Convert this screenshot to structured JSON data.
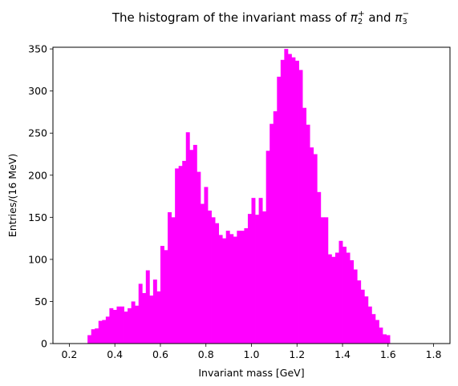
{
  "chart_data": {
    "type": "bar",
    "title_main": "The histogram of the invariant mass of ",
    "title_sym1": "π",
    "title_sub1": "2",
    "title_sup1": "+",
    "title_and": " and ",
    "title_sym2": "π",
    "title_sub2": "3",
    "title_sup2": "−",
    "xlabel": "Invariant mass [GeV]",
    "ylabel": "Entries/(16 MeV)",
    "xlim": [
      0.128,
      1.872
    ],
    "ylim": [
      0,
      352
    ],
    "xticks": [
      "0.2",
      "0.4",
      "0.6",
      "0.8",
      "1.0",
      "1.2",
      "1.4",
      "1.6",
      "1.8"
    ],
    "yticks": [
      "0",
      "50",
      "100",
      "150",
      "200",
      "250",
      "300",
      "350"
    ],
    "bar_color": "#ff00ff",
    "bin_start": 0.28,
    "bin_width": 0.016,
    "values": [
      10,
      17,
      18,
      27,
      28,
      32,
      42,
      40,
      44,
      44,
      38,
      42,
      50,
      45,
      71,
      60,
      87,
      57,
      76,
      62,
      116,
      111,
      156,
      150,
      208,
      211,
      217,
      251,
      230,
      236,
      204,
      166,
      186,
      158,
      150,
      143,
      129,
      125,
      134,
      130,
      127,
      134,
      134,
      137,
      154,
      173,
      153,
      173,
      157,
      229,
      261,
      276,
      317,
      337,
      350,
      344,
      340,
      336,
      325,
      280,
      260,
      233,
      225,
      180,
      150,
      150,
      106,
      103,
      108,
      122,
      115,
      108,
      99,
      88,
      75,
      64,
      56,
      44,
      35,
      28,
      19,
      11,
      10
    ]
  }
}
